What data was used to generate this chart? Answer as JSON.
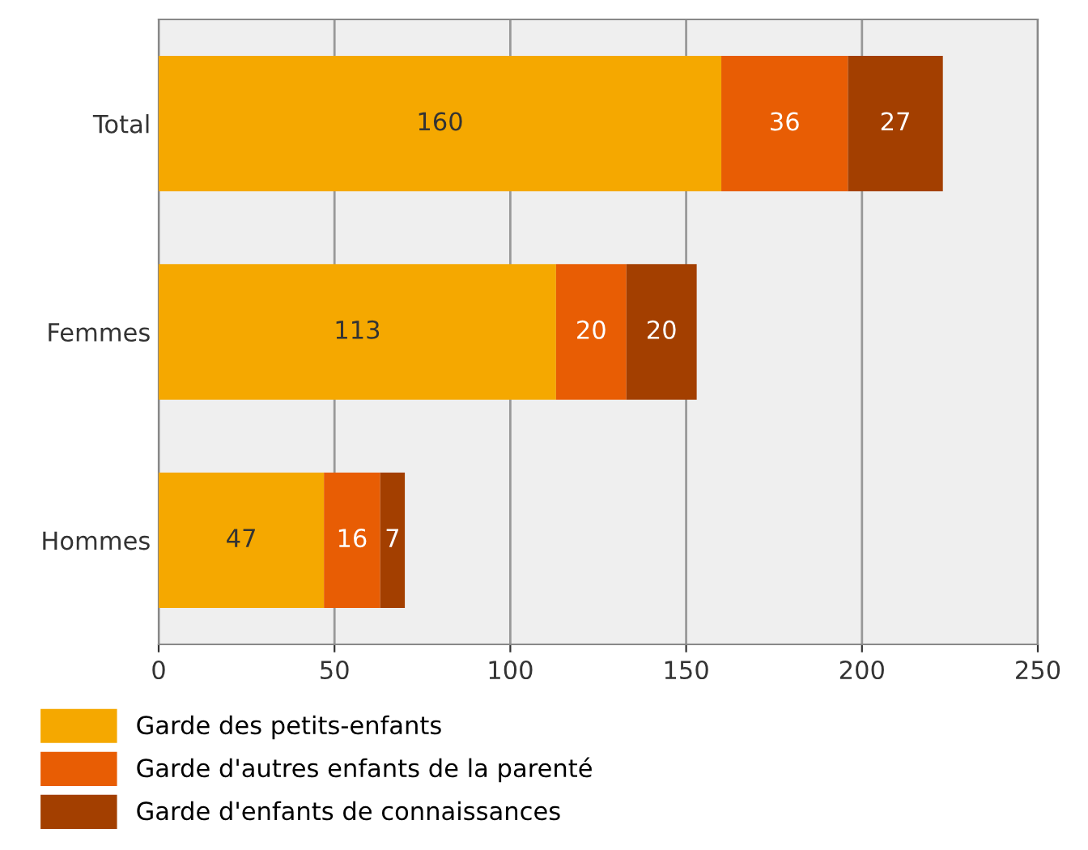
{
  "chart_data": {
    "type": "bar",
    "orientation": "horizontal",
    "stacked": true,
    "categories": [
      "Total",
      "Femmes",
      "Hommes"
    ],
    "series": [
      {
        "name": "Garde des petits-enfants",
        "color": "#f5a800",
        "values": [
          160,
          113,
          47
        ]
      },
      {
        "name": "Garde d'autres enfants de la parenté",
        "color": "#e85d04",
        "values": [
          36,
          20,
          16
        ]
      },
      {
        "name": "Garde d'enfants de connaissances",
        "color": "#a33f00",
        "values": [
          27,
          20,
          7
        ]
      }
    ],
    "xlim": [
      0,
      250
    ],
    "xticks": [
      0,
      50,
      100,
      150,
      200,
      250
    ],
    "grid": "x",
    "data_labels": true,
    "legend": "bottom"
  }
}
